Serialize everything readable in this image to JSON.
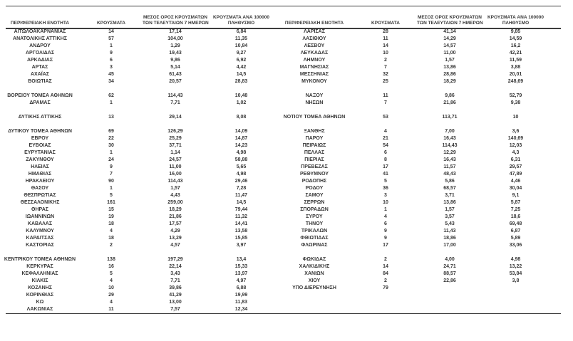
{
  "colors": {
    "background": "#ffffff",
    "text": "#383838",
    "rule_lines": "#3c3c3c"
  },
  "chart_data": {
    "type": "table",
    "columns": [
      {
        "lines": [
          "ΠΕΡΙΦΕΡΕΙΑΚΗ ΕΝΟΤΗΤΑ"
        ]
      },
      {
        "lines": [
          "ΚΡΟΥΣΜΑΤΑ"
        ]
      },
      {
        "lines": [
          "ΜΕΣΟΣ ΟΡΟΣ ΚΡΟΥΣΜΑΤΩΝ",
          "ΤΩΝ ΤΕΛΕΥΤΑΙΩΝ 7 ΗΜΕΡΩΝ"
        ]
      },
      {
        "lines": [
          "ΚΡΟΥΣΜΑΤΑ ΑΝΑ 100000",
          "ΠΛΗΘΥΣΜΟ"
        ]
      }
    ],
    "sections": {
      "left": {
        "blocks": [
          [
            [
              "ΑΙΤΩΛΟΑΚΑΡΝΑΝΙΑΣ",
              "14",
              "17,14",
              "6,84"
            ],
            [
              "ΑΝΑΤΟΛΙΚΗΣ ΑΤΤΙΚΗΣ",
              "57",
              "104,00",
              "11,35"
            ],
            [
              "ΑΝΔΡΟΥ",
              "1",
              "1,29",
              "10,84"
            ],
            [
              "ΑΡΓΟΛΙΔΑΣ",
              "9",
              "19,43",
              "9,27"
            ],
            [
              "ΑΡΚΑΔΙΑΣ",
              "6",
              "9,86",
              "6,92"
            ],
            [
              "ΑΡΤΑΣ",
              "3",
              "5,14",
              "4,42"
            ],
            [
              "ΑΧΑΪΑΣ",
              "45",
              "61,43",
              "14,5"
            ],
            [
              "ΒΟΙΩΤΙΑΣ",
              "34",
              "20,57",
              "28,83"
            ]
          ],
          [
            [
              "ΒΟΡΕΙΟΥ ΤΟΜΕΑ ΑΘΗΝΩΝ",
              "62",
              "114,43",
              "10,48"
            ],
            [
              "ΔΡΑΜΑΣ",
              "1",
              "7,71",
              "1,02"
            ]
          ],
          [
            [
              "ΔΥΤΙΚΗΣ ΑΤΤΙΚΗΣ",
              "13",
              "29,14",
              "8,08"
            ]
          ],
          [
            [
              "ΔΥΤΙΚΟΥ ΤΟΜΕΑ ΑΘΗΝΩΝ",
              "69",
              "126,29",
              "14,09"
            ],
            [
              "ΕΒΡΟΥ",
              "22",
              "25,29",
              "14,87"
            ],
            [
              "ΕΥΒΟΙΑΣ",
              "30",
              "37,71",
              "14,23"
            ],
            [
              "ΕΥΡΥΤΑΝΙΑΣ",
              "1",
              "1,14",
              "4,98"
            ],
            [
              "ΖΑΚΥΝΘΟΥ",
              "24",
              "24,57",
              "58,88"
            ],
            [
              "ΗΛΕΙΑΣ",
              "9",
              "11,00",
              "5,65"
            ],
            [
              "ΗΜΑΘΙΑΣ",
              "7",
              "16,00",
              "4,98"
            ],
            [
              "ΗΡΑΚΛΕΙΟΥ",
              "90",
              "114,43",
              "29,46"
            ],
            [
              "ΘΑΣΟΥ",
              "1",
              "1,57",
              "7,28"
            ],
            [
              "ΘΕΣΠΡΩΤΙΑΣ",
              "5",
              "4,43",
              "11,47"
            ],
            [
              "ΘΕΣΣΑΛΟΝΙΚΗΣ",
              "161",
              "259,00",
              "14,5"
            ],
            [
              "ΘΗΡΑΣ",
              "15",
              "18,29",
              "79,44"
            ],
            [
              "ΙΩΑΝΝΙΝΩΝ",
              "19",
              "21,86",
              "11,32"
            ],
            [
              "ΚΑΒΑΛΑΣ",
              "18",
              "17,57",
              "14,41"
            ],
            [
              "ΚΑΛΥΜΝΟΥ",
              "4",
              "4,29",
              "13,58"
            ],
            [
              "ΚΑΡΔΙΤΣΑΣ",
              "18",
              "13,29",
              "15,85"
            ],
            [
              "ΚΑΣΤΟΡΙΑΣ",
              "2",
              "4,57",
              "3,97"
            ]
          ],
          [
            [
              "ΚΕΝΤΡΙΚΟΥ ΤΟΜΕΑ ΑΘΗΝΩΝ",
              "138",
              "197,29",
              "13,4"
            ],
            [
              "ΚΕΡΚΥΡΑΣ",
              "16",
              "22,14",
              "15,33"
            ],
            [
              "ΚΕΦΑΛΛΗΝΙΑΣ",
              "5",
              "3,43",
              "13,97"
            ],
            [
              "ΚΙΛΚΙΣ",
              "4",
              "7,71",
              "4,97"
            ],
            [
              "ΚΟΖΑΝΗΣ",
              "10",
              "39,86",
              "6,88"
            ],
            [
              "ΚΟΡΙΝΘΙΑΣ",
              "29",
              "41,29",
              "19,99"
            ],
            [
              "ΚΩ",
              "4",
              "13,00",
              "11,83"
            ],
            [
              "ΛΑΚΩΝΙΑΣ",
              "11",
              "7,57",
              "12,34"
            ]
          ]
        ]
      },
      "right": {
        "blocks": [
          [
            [
              "ΛΑΡΙΣΑΣ",
              "28",
              "41,14",
              "9,85"
            ],
            [
              "ΛΑΣΙΘΙΟΥ",
              "11",
              "14,29",
              "14,59"
            ],
            [
              "ΛΕΣΒΟΥ",
              "14",
              "14,57",
              "16,2"
            ],
            [
              "ΛΕΥΚΑΔΑΣ",
              "10",
              "11,00",
              "42,21"
            ],
            [
              "ΛΗΜΝΟΥ",
              "2",
              "1,57",
              "11,59"
            ],
            [
              "ΜΑΓΝΗΣΙΑΣ",
              "7",
              "13,86",
              "3,88"
            ],
            [
              "ΜΕΣΣΗΝΙΑΣ",
              "32",
              "28,86",
              "20,01"
            ],
            [
              "ΜΥΚΟΝΟΥ",
              "25",
              "18,29",
              "248,69"
            ]
          ],
          [
            [
              "ΝΑΞΟΥ",
              "11",
              "9,86",
              "52,79"
            ],
            [
              "ΝΗΣΩΝ",
              "7",
              "21,86",
              "9,38"
            ]
          ],
          [
            [
              "ΝΟΤΙΟΥ ΤΟΜΕΑ ΑΘΗΝΩΝ",
              "53",
              "113,71",
              "10"
            ]
          ],
          [
            [
              "ΞΑΝΘΗΣ",
              "4",
              "7,00",
              "3,6"
            ],
            [
              "ΠΑΡΟΥ",
              "21",
              "16,43",
              "140,69"
            ],
            [
              "ΠΕΙΡΑΙΩΣ",
              "54",
              "114,43",
              "12,03"
            ],
            [
              "ΠΕΛΛΑΣ",
              "6",
              "12,29",
              "4,3"
            ],
            [
              "ΠΙΕΡΙΑΣ",
              "8",
              "16,43",
              "6,31"
            ],
            [
              "ΠΡΕΒΕΖΑΣ",
              "17",
              "11,57",
              "29,57"
            ],
            [
              "ΡΕΘΥΜΝΟΥ",
              "41",
              "48,43",
              "47,89"
            ],
            [
              "ΡΟΔΟΠΗΣ",
              "5",
              "5,86",
              "4,46"
            ],
            [
              "ΡΟΔΟΥ",
              "36",
              "68,57",
              "30,04"
            ],
            [
              "ΣΑΜΟΥ",
              "3",
              "3,71",
              "9,1"
            ],
            [
              "ΣΕΡΡΩΝ",
              "10",
              "13,86",
              "5,87"
            ],
            [
              "ΣΠΟΡΑΔΩΝ",
              "1",
              "1,57",
              "7,25"
            ],
            [
              "ΣΥΡΟΥ",
              "4",
              "3,57",
              "18,6"
            ],
            [
              "ΤΗΝΟΥ",
              "6",
              "5,43",
              "69,48"
            ],
            [
              "ΤΡΙΚΑΛΩΝ",
              "9",
              "11,43",
              "6,87"
            ],
            [
              "ΦΘΙΩΤΙΔΑΣ",
              "9",
              "18,86",
              "5,89"
            ],
            [
              "ΦΛΩΡΙΝΑΣ",
              "17",
              "17,00",
              "33,06"
            ]
          ],
          [
            [
              "ΦΩΚΙΔΑΣ",
              "2",
              "4,00",
              "4,98"
            ],
            [
              "ΧΑΛΚΙΔΙΚΗΣ",
              "14",
              "24,71",
              "13,22"
            ],
            [
              "ΧΑΝΙΩΝ",
              "84",
              "88,57",
              "53,84"
            ],
            [
              "ΧΙΟΥ",
              "2",
              "22,86",
              "3,8"
            ],
            [
              "ΥΠΟ ΔΙΕΡΕΥΝΗΣΗ",
              "79",
              "",
              ""
            ]
          ]
        ]
      }
    }
  }
}
